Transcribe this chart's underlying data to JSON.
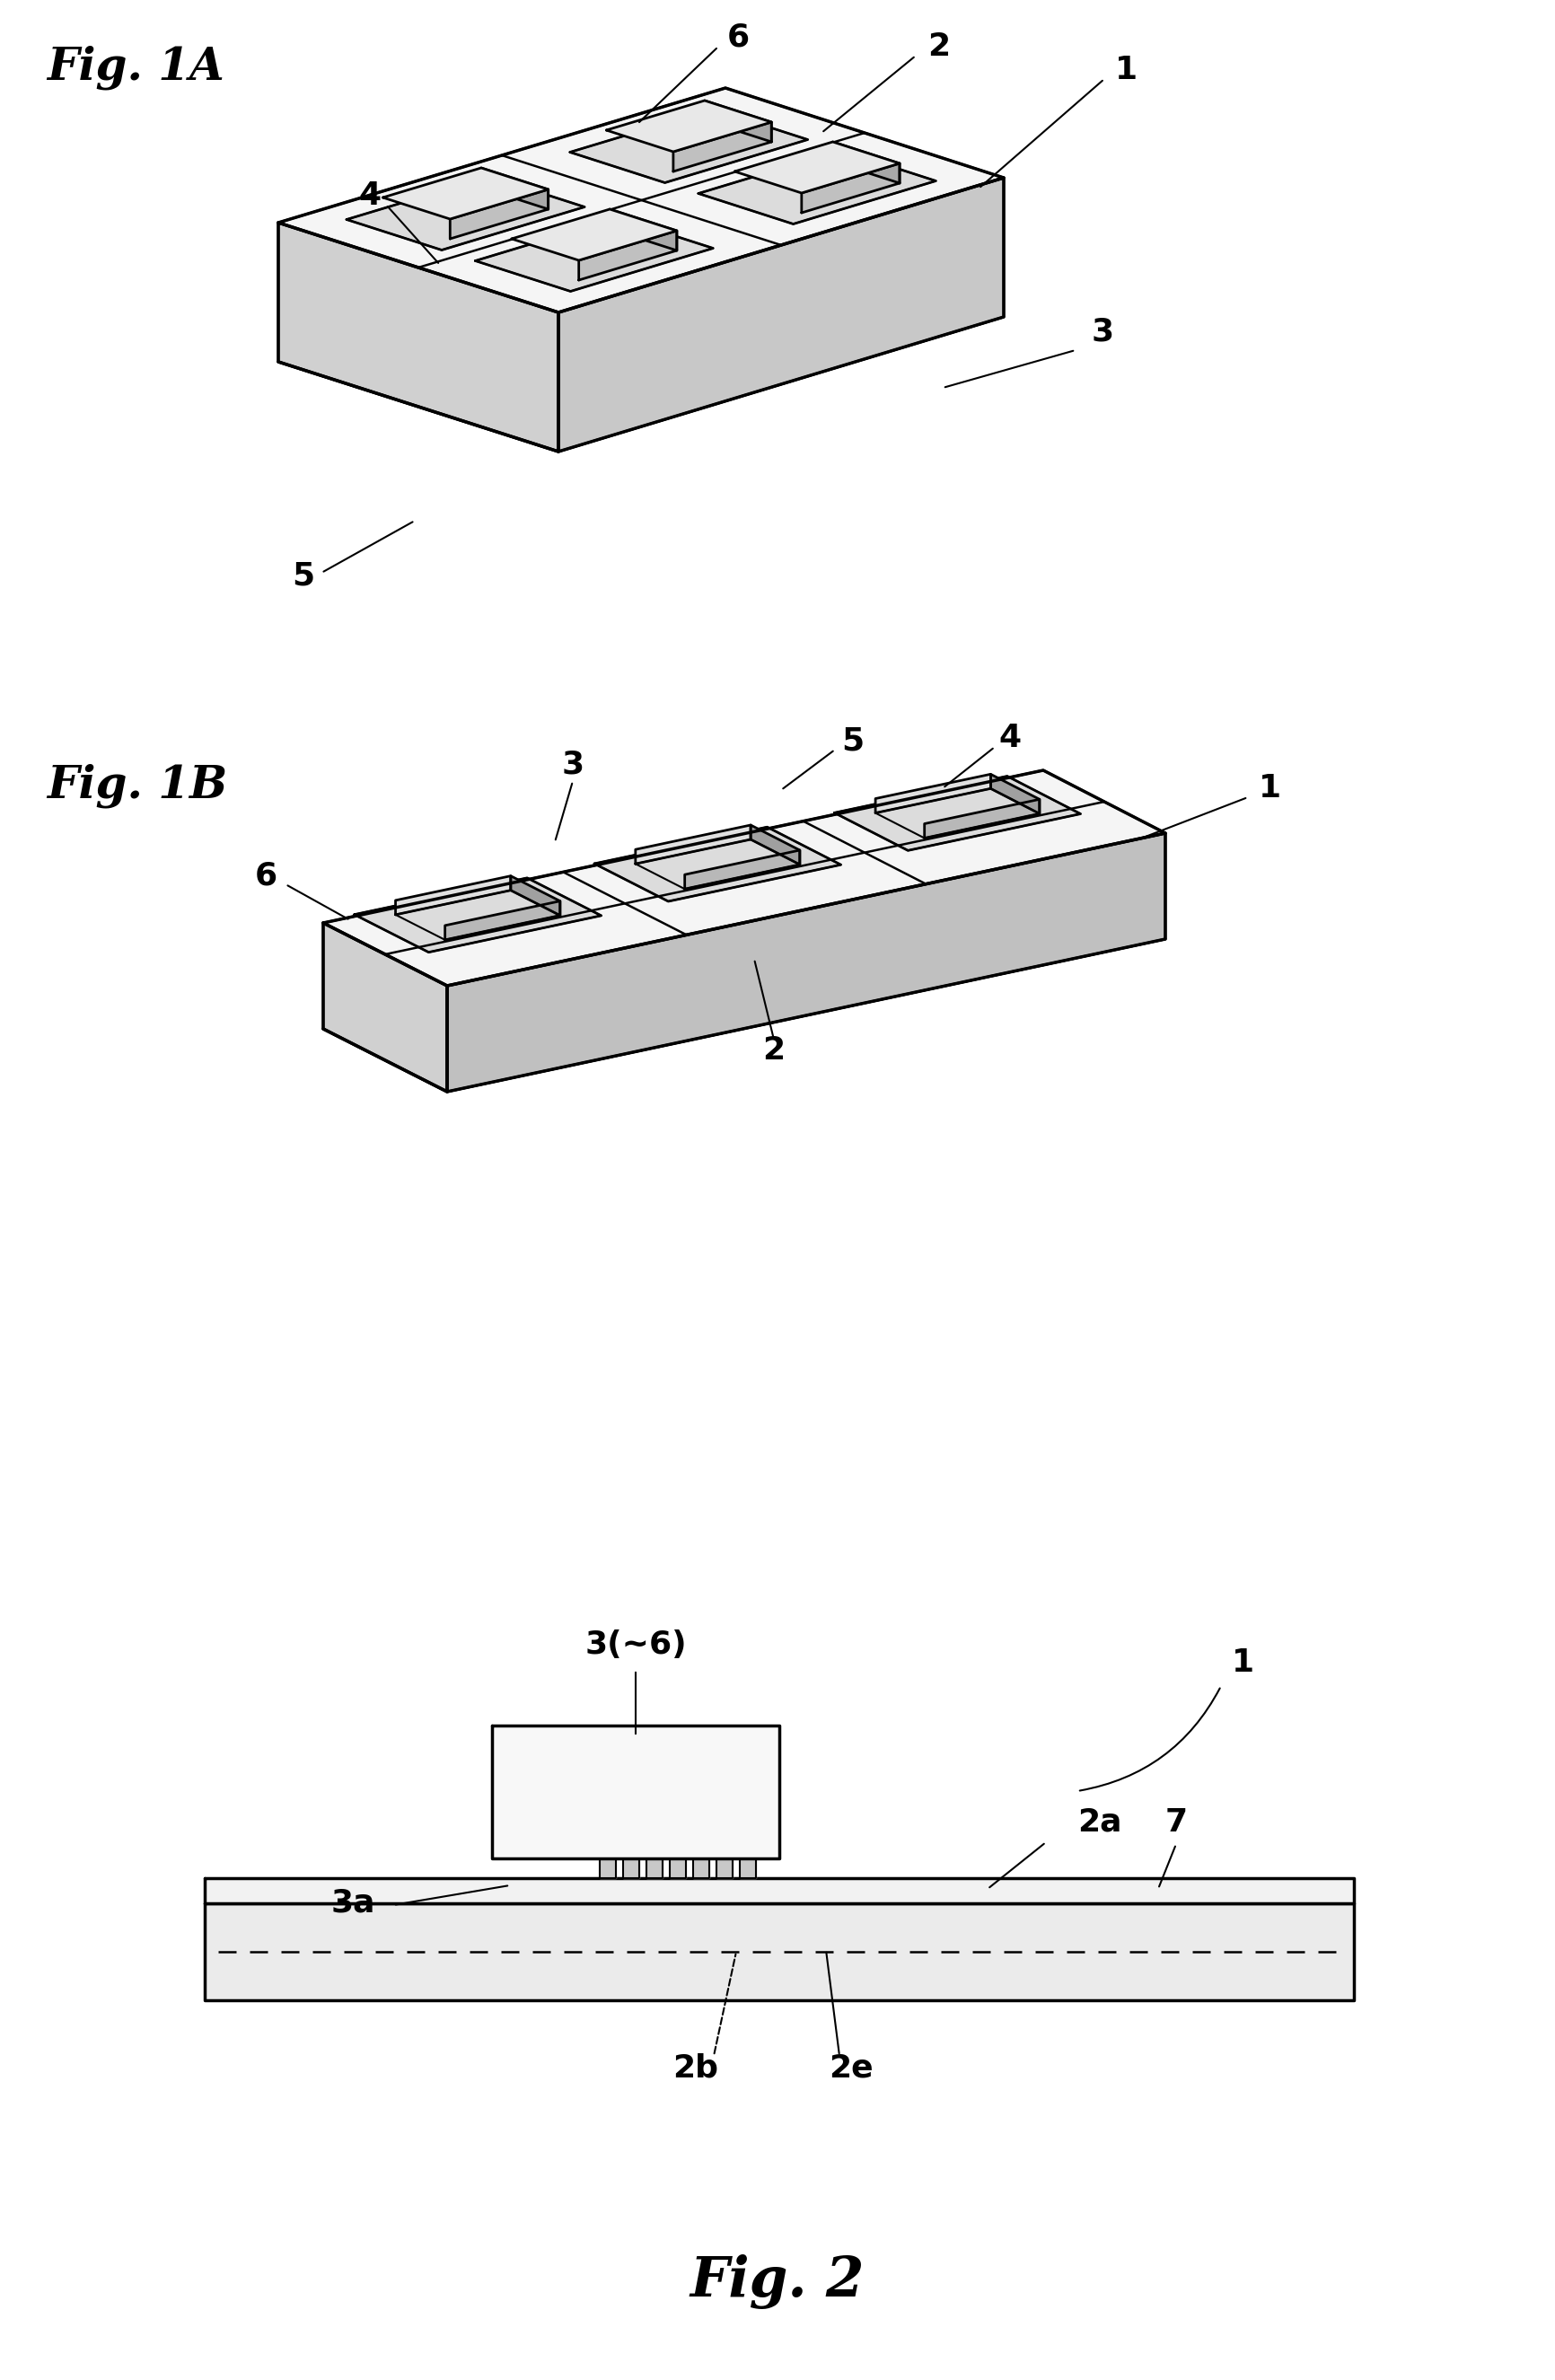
{
  "bg_color": "#ffffff",
  "line_color": "#000000",
  "fig_width": 17.32,
  "fig_height": 26.51,
  "fig1a_label": "Fig. 1A",
  "fig1b_label": "Fig. 1B",
  "fig2_label": "Fig. 2"
}
